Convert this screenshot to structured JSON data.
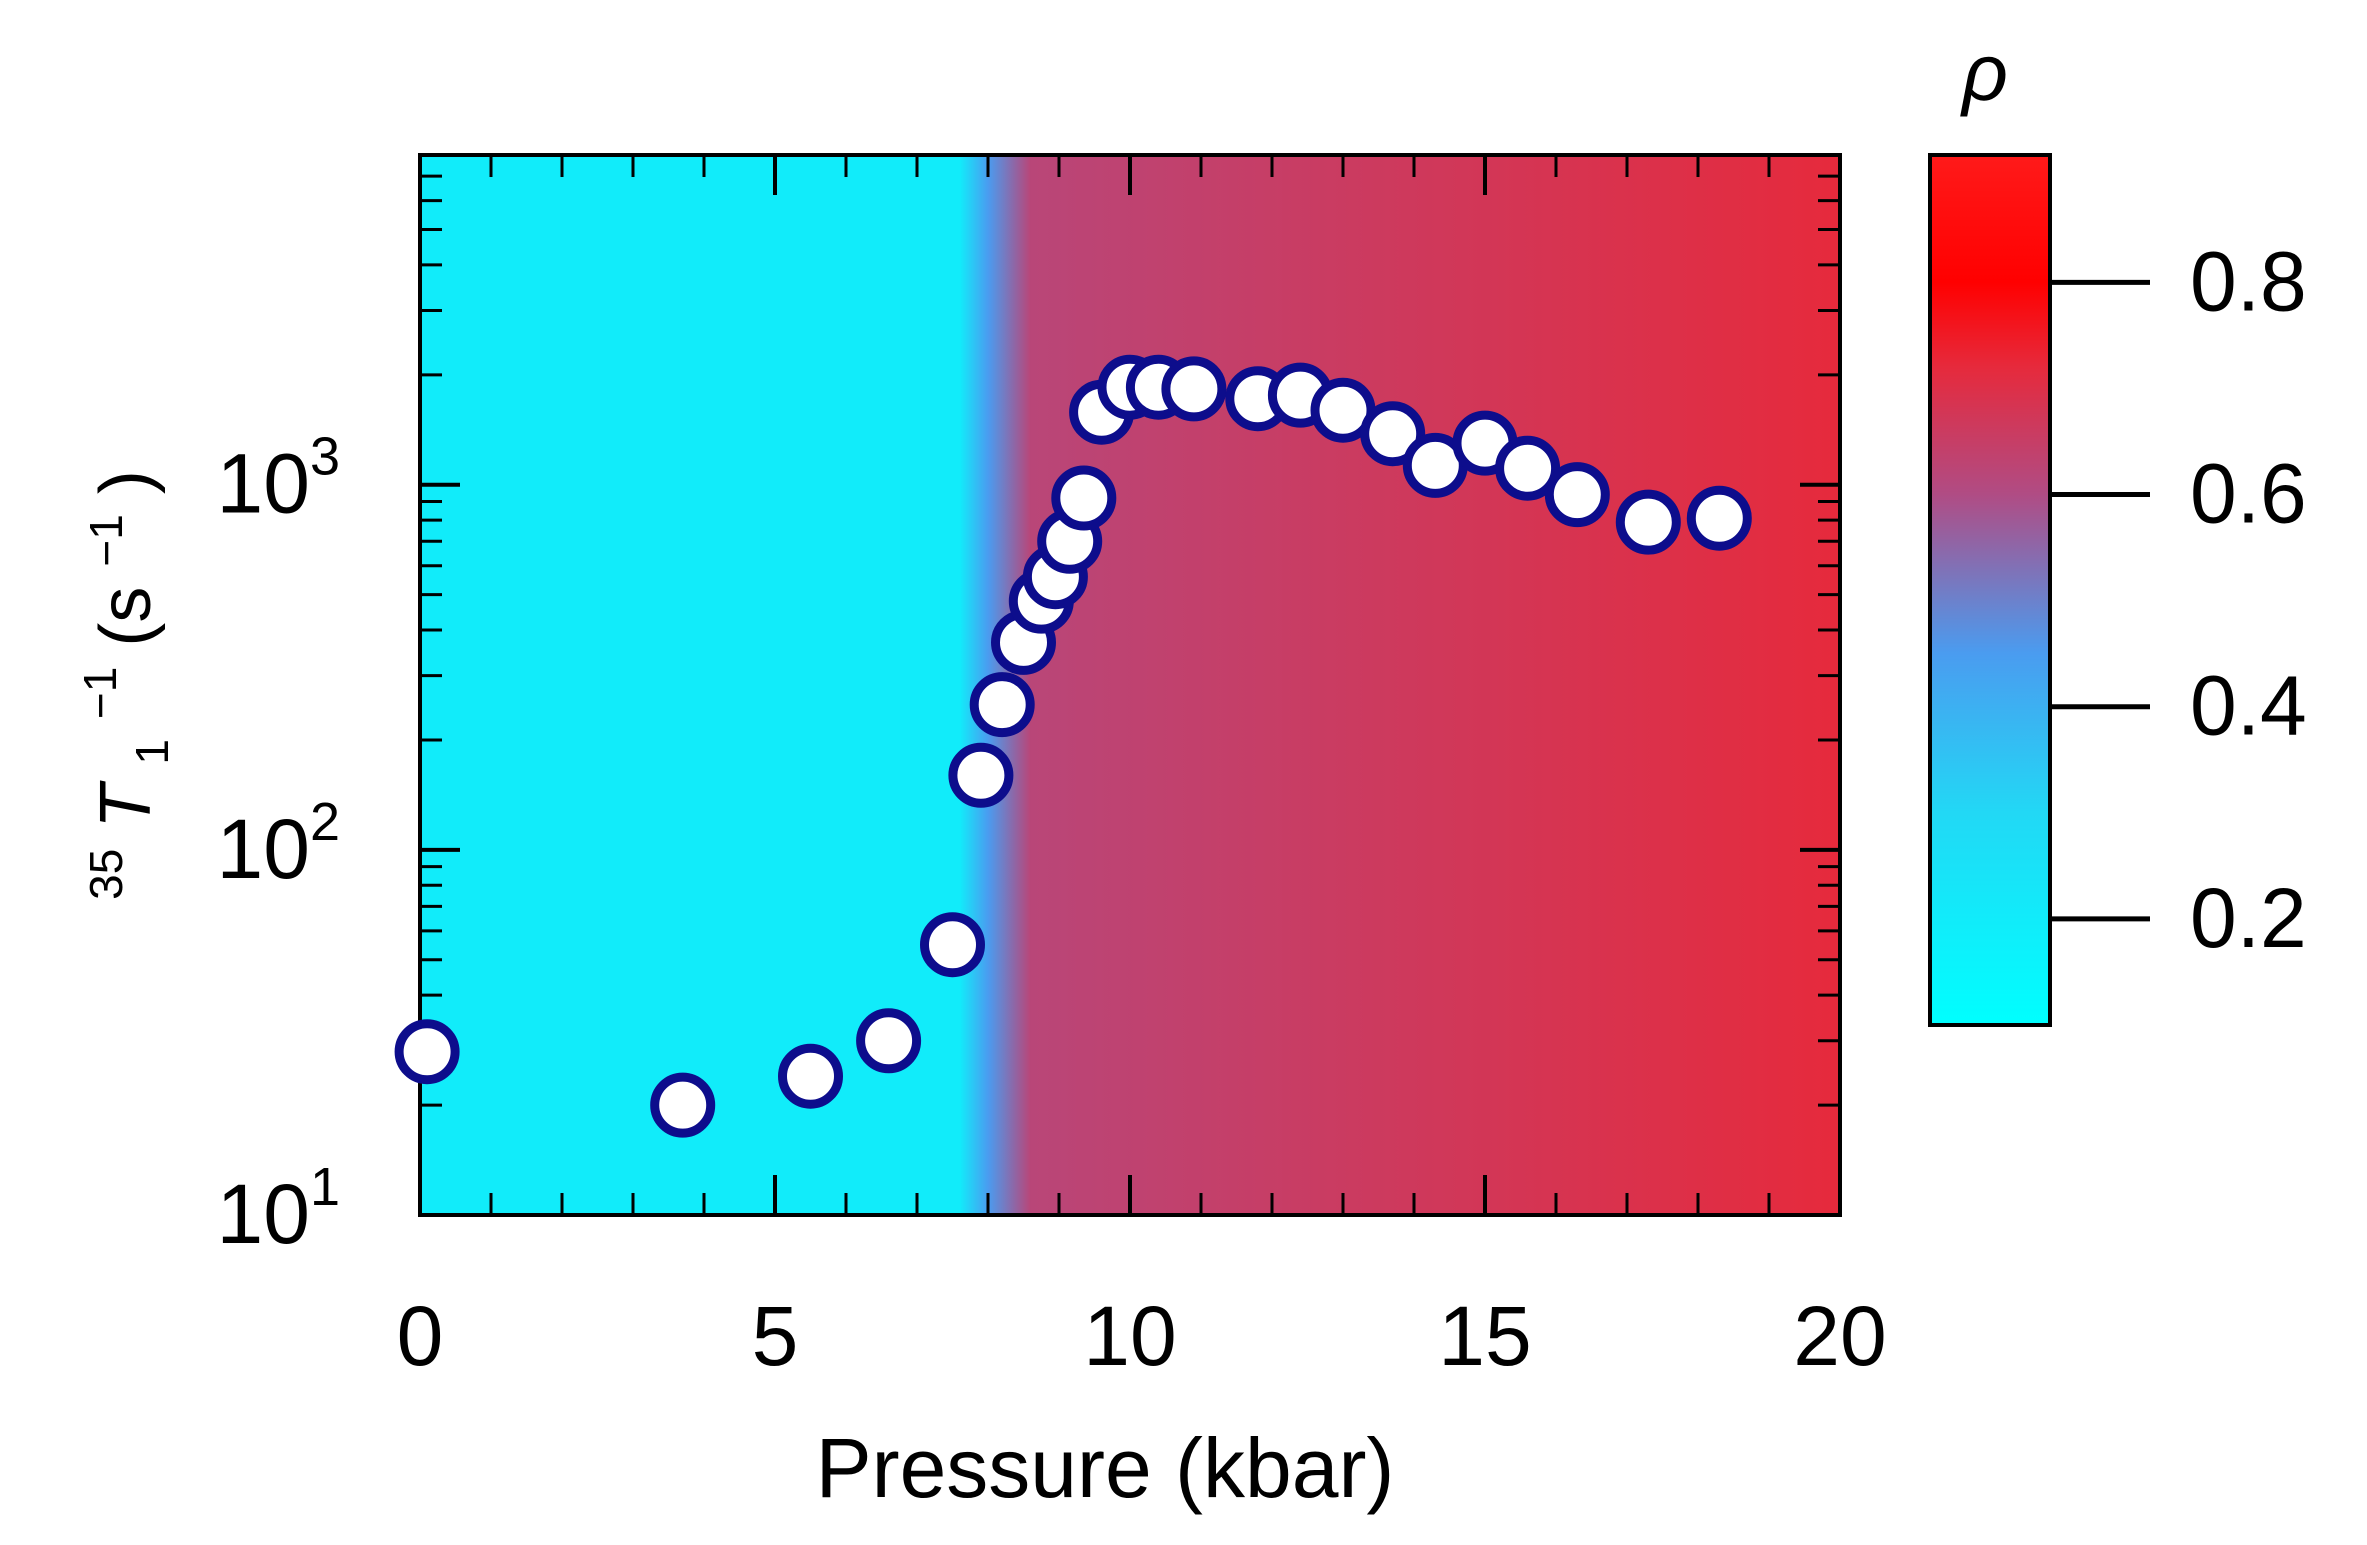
{
  "chart_data": {
    "type": "scatter",
    "xlabel": "Pressure (kbar)",
    "ylabel": {
      "pre": "35",
      "main": "T",
      "sub": "1",
      "sup": "−1",
      "post": " (s",
      "unit_sup": "−1",
      "close": ")"
    },
    "xlim": [
      0,
      20
    ],
    "ylim": [
      10,
      8000
    ],
    "yscale": "log",
    "x_ticks": [
      "0",
      "5",
      "10",
      "15",
      "20"
    ],
    "x_tick_values": [
      0,
      5,
      10,
      15,
      20
    ],
    "y_ticks": [
      {
        "base": "10",
        "exp": "1",
        "value": 10
      },
      {
        "base": "10",
        "exp": "2",
        "value": 100
      },
      {
        "base": "10",
        "exp": "3",
        "value": 1000
      }
    ],
    "background_gradient": {
      "label": "ρ",
      "regions": [
        {
          "x": 0,
          "rho": 0.2
        },
        {
          "x": 7.6,
          "rho": 0.2
        },
        {
          "x": 8.0,
          "rho": 0.45
        },
        {
          "x": 8.6,
          "rho": 0.62
        },
        {
          "x": 20,
          "rho": 0.72
        }
      ]
    },
    "colorbar": {
      "label": "ρ",
      "range": [
        0.1,
        0.92
      ],
      "ticks": [
        "0.2",
        "0.4",
        "0.6",
        "0.8"
      ],
      "tick_values": [
        0.2,
        0.4,
        0.6,
        0.8
      ],
      "stops": [
        {
          "value": 0.1,
          "color": "#00FFFF"
        },
        {
          "value": 0.3,
          "color": "#22D8F5"
        },
        {
          "value": 0.45,
          "color": "#4A9CF0"
        },
        {
          "value": 0.6,
          "color": "#B04C84"
        },
        {
          "value": 0.72,
          "color": "#E62A3C"
        },
        {
          "value": 0.8,
          "color": "#FF0000"
        },
        {
          "value": 0.92,
          "color": "#FF1A1A"
        }
      ]
    },
    "series": [
      {
        "name": "35T1-1",
        "marker": "circle",
        "fill": "#FFFFFF",
        "edge": "#0D0D8C",
        "x": [
          0.1,
          3.7,
          5.5,
          6.6,
          7.5,
          7.9,
          8.2,
          8.5,
          8.75,
          8.95,
          9.15,
          9.35,
          9.6,
          10.0,
          10.4,
          10.9,
          11.8,
          12.4,
          13.0,
          13.7,
          14.3,
          15.0,
          15.6,
          16.3,
          17.3,
          18.3
        ],
        "y": [
          28,
          20,
          24,
          30,
          55,
          160,
          250,
          370,
          480,
          560,
          700,
          920,
          1580,
          1850,
          1850,
          1830,
          1720,
          1760,
          1600,
          1380,
          1130,
          1300,
          1110,
          940,
          790,
          810
        ]
      }
    ]
  },
  "colors": {
    "cyan": "#00FFFF",
    "red": "#E62A3C",
    "marker_edge": "#0D0D8C"
  }
}
